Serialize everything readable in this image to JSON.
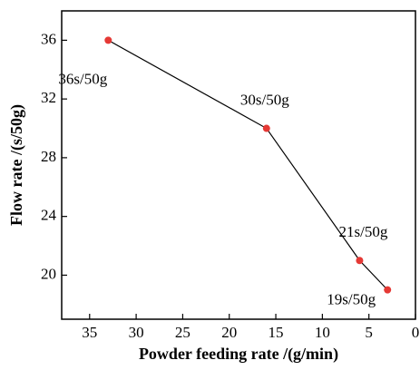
{
  "chart_data": {
    "type": "line",
    "x_label": "Powder feeding rate /(g/min)",
    "y_label": "Flow rate /(s/50g)",
    "x": [
      33,
      16,
      6,
      3
    ],
    "series": [
      {
        "color": "#e53935",
        "line_color": "#000000",
        "values": [
          36,
          30,
          21,
          19
        ],
        "value_labels": [
          "36s/50g",
          "30s/50g",
          "21s/50g",
          "19s/50g"
        ]
      }
    ],
    "xlim": [
      38,
      0
    ],
    "xticks": [
      35,
      30,
      25,
      20,
      15,
      10,
      5,
      0
    ],
    "ylim": [
      17,
      38
    ],
    "yticks": [
      20,
      24,
      28,
      32,
      36
    ]
  }
}
